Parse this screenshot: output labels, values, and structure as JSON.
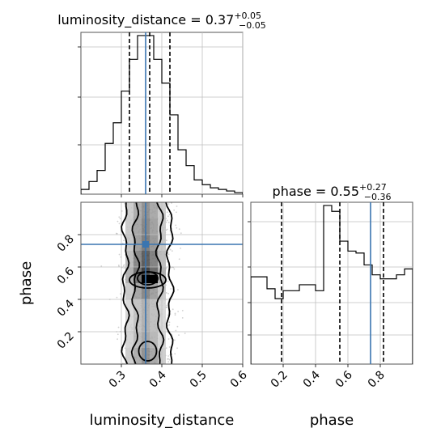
{
  "chart_data": [
    {
      "type": "histogram",
      "panel": "top-left",
      "title_param": "luminosity_distance",
      "title_value": "0.37",
      "title_plus": "+0.05",
      "title_minus": "−0.05",
      "xlim": [
        0.2,
        0.6
      ],
      "bin_edges": [
        0.2,
        0.22,
        0.24,
        0.26,
        0.28,
        0.3,
        0.32,
        0.34,
        0.36,
        0.38,
        0.4,
        0.42,
        0.44,
        0.46,
        0.48,
        0.5,
        0.52,
        0.54,
        0.56,
        0.58,
        0.6
      ],
      "counts": [
        3,
        8,
        15,
        32,
        45,
        65,
        85,
        100,
        100,
        85,
        70,
        50,
        28,
        18,
        9,
        6,
        4,
        3,
        2,
        1
      ],
      "quantiles": [
        0.32,
        0.37,
        0.42
      ],
      "truth": 0.36,
      "grid": true
    },
    {
      "type": "histogram",
      "panel": "bottom-right",
      "title_param": "phase",
      "title_value": "0.55",
      "title_plus": "+0.27",
      "title_minus": "−0.36",
      "xlim": [
        0.0,
        1.0
      ],
      "xticks": [
        "0.2",
        "0.4",
        "0.6",
        "0.8"
      ],
      "xlabel": "phase",
      "bin_edges": [
        0.0,
        0.1,
        0.15,
        0.2,
        0.3,
        0.4,
        0.45,
        0.5,
        0.55,
        0.6,
        0.65,
        0.7,
        0.75,
        0.8,
        0.85,
        0.9,
        0.95,
        1.0
      ],
      "counts": [
        44,
        38,
        33,
        37,
        40,
        37,
        80,
        77,
        62,
        57,
        56,
        50,
        45,
        43,
        43,
        45,
        48
      ],
      "quantiles": [
        0.19,
        0.55,
        0.82
      ],
      "truth": 0.74,
      "grid": true
    },
    {
      "type": "density-contour",
      "panel": "bottom-left",
      "xlim": [
        0.2,
        0.6
      ],
      "ylim": [
        0.0,
        1.0
      ],
      "xticks": [
        "0.3",
        "0.4",
        "0.5",
        "0.6"
      ],
      "yticks": [
        "0.2",
        "0.4",
        "0.6",
        "0.8"
      ],
      "xlabel": "luminosity_distance",
      "ylabel": "phase",
      "truth": {
        "x": 0.36,
        "y": 0.74
      },
      "grid": true
    }
  ]
}
